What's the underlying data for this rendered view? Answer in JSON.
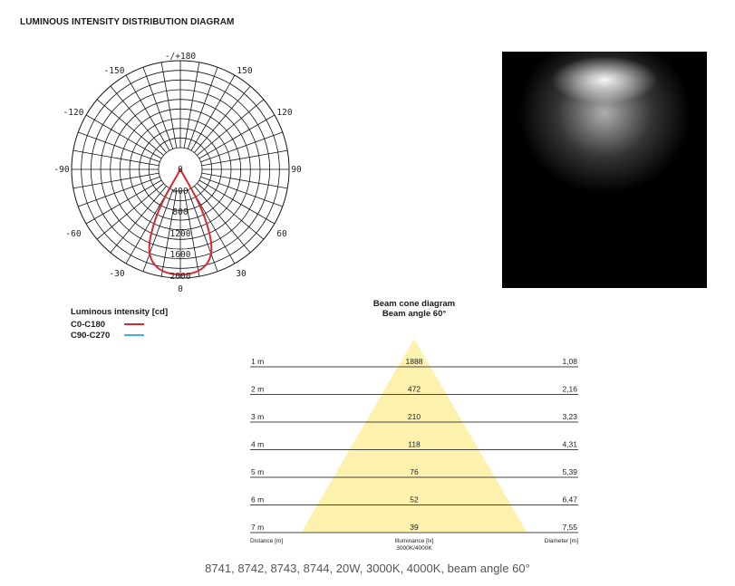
{
  "header": {
    "title": "LUMINOUS INTENSITY DISTRIBUTION DIAGRAM"
  },
  "polar_diagram": {
    "angle_labels": {
      "top": "-/+180",
      "upper_left": "-150",
      "upper_right": "150",
      "left_high": "-120",
      "right_high": "120",
      "left": "-90",
      "right": "90",
      "left_low": "-60",
      "right_low": "60",
      "bottom_left": "-30",
      "bottom_right": "30",
      "bottom": "0"
    },
    "radial_labels": [
      "0",
      "400",
      "800",
      "1200",
      "1600",
      "2000"
    ],
    "curve_color_c0": "#d42b30",
    "curve_color_c90": "#3fb0e0"
  },
  "legend": {
    "title": "Luminous intensity [cd]",
    "items": [
      {
        "label": "C0-C180",
        "color": "#d42b30"
      },
      {
        "label": "C90-C270",
        "color": "#3fb0e0"
      }
    ]
  },
  "beam_cone": {
    "title": "Beam cone diagram",
    "subtitle": "Beam angle 60°",
    "cone_color": "#fcf2ad",
    "rows": [
      {
        "distance": "1 m",
        "illuminance": "1888",
        "diameter": "1,08"
      },
      {
        "distance": "2 m",
        "illuminance": "472",
        "diameter": "2,16"
      },
      {
        "distance": "3 m",
        "illuminance": "210",
        "diameter": "3,23"
      },
      {
        "distance": "4 m",
        "illuminance": "118",
        "diameter": "4,31"
      },
      {
        "distance": "5 m",
        "illuminance": "76",
        "diameter": "5,39"
      },
      {
        "distance": "6 m",
        "illuminance": "52",
        "diameter": "6,47"
      },
      {
        "distance": "7 m",
        "illuminance": "39",
        "diameter": "7,55"
      }
    ],
    "footer": {
      "distance": "Distance [m]",
      "illuminance": "Illuminance [lx]",
      "illuminance_sub": "3000K/4000K",
      "diameter": "Diameter [m]"
    }
  },
  "caption": "8741, 8742, 8743, 8744, 20W, 3000K, 4000K, beam angle 60°"
}
